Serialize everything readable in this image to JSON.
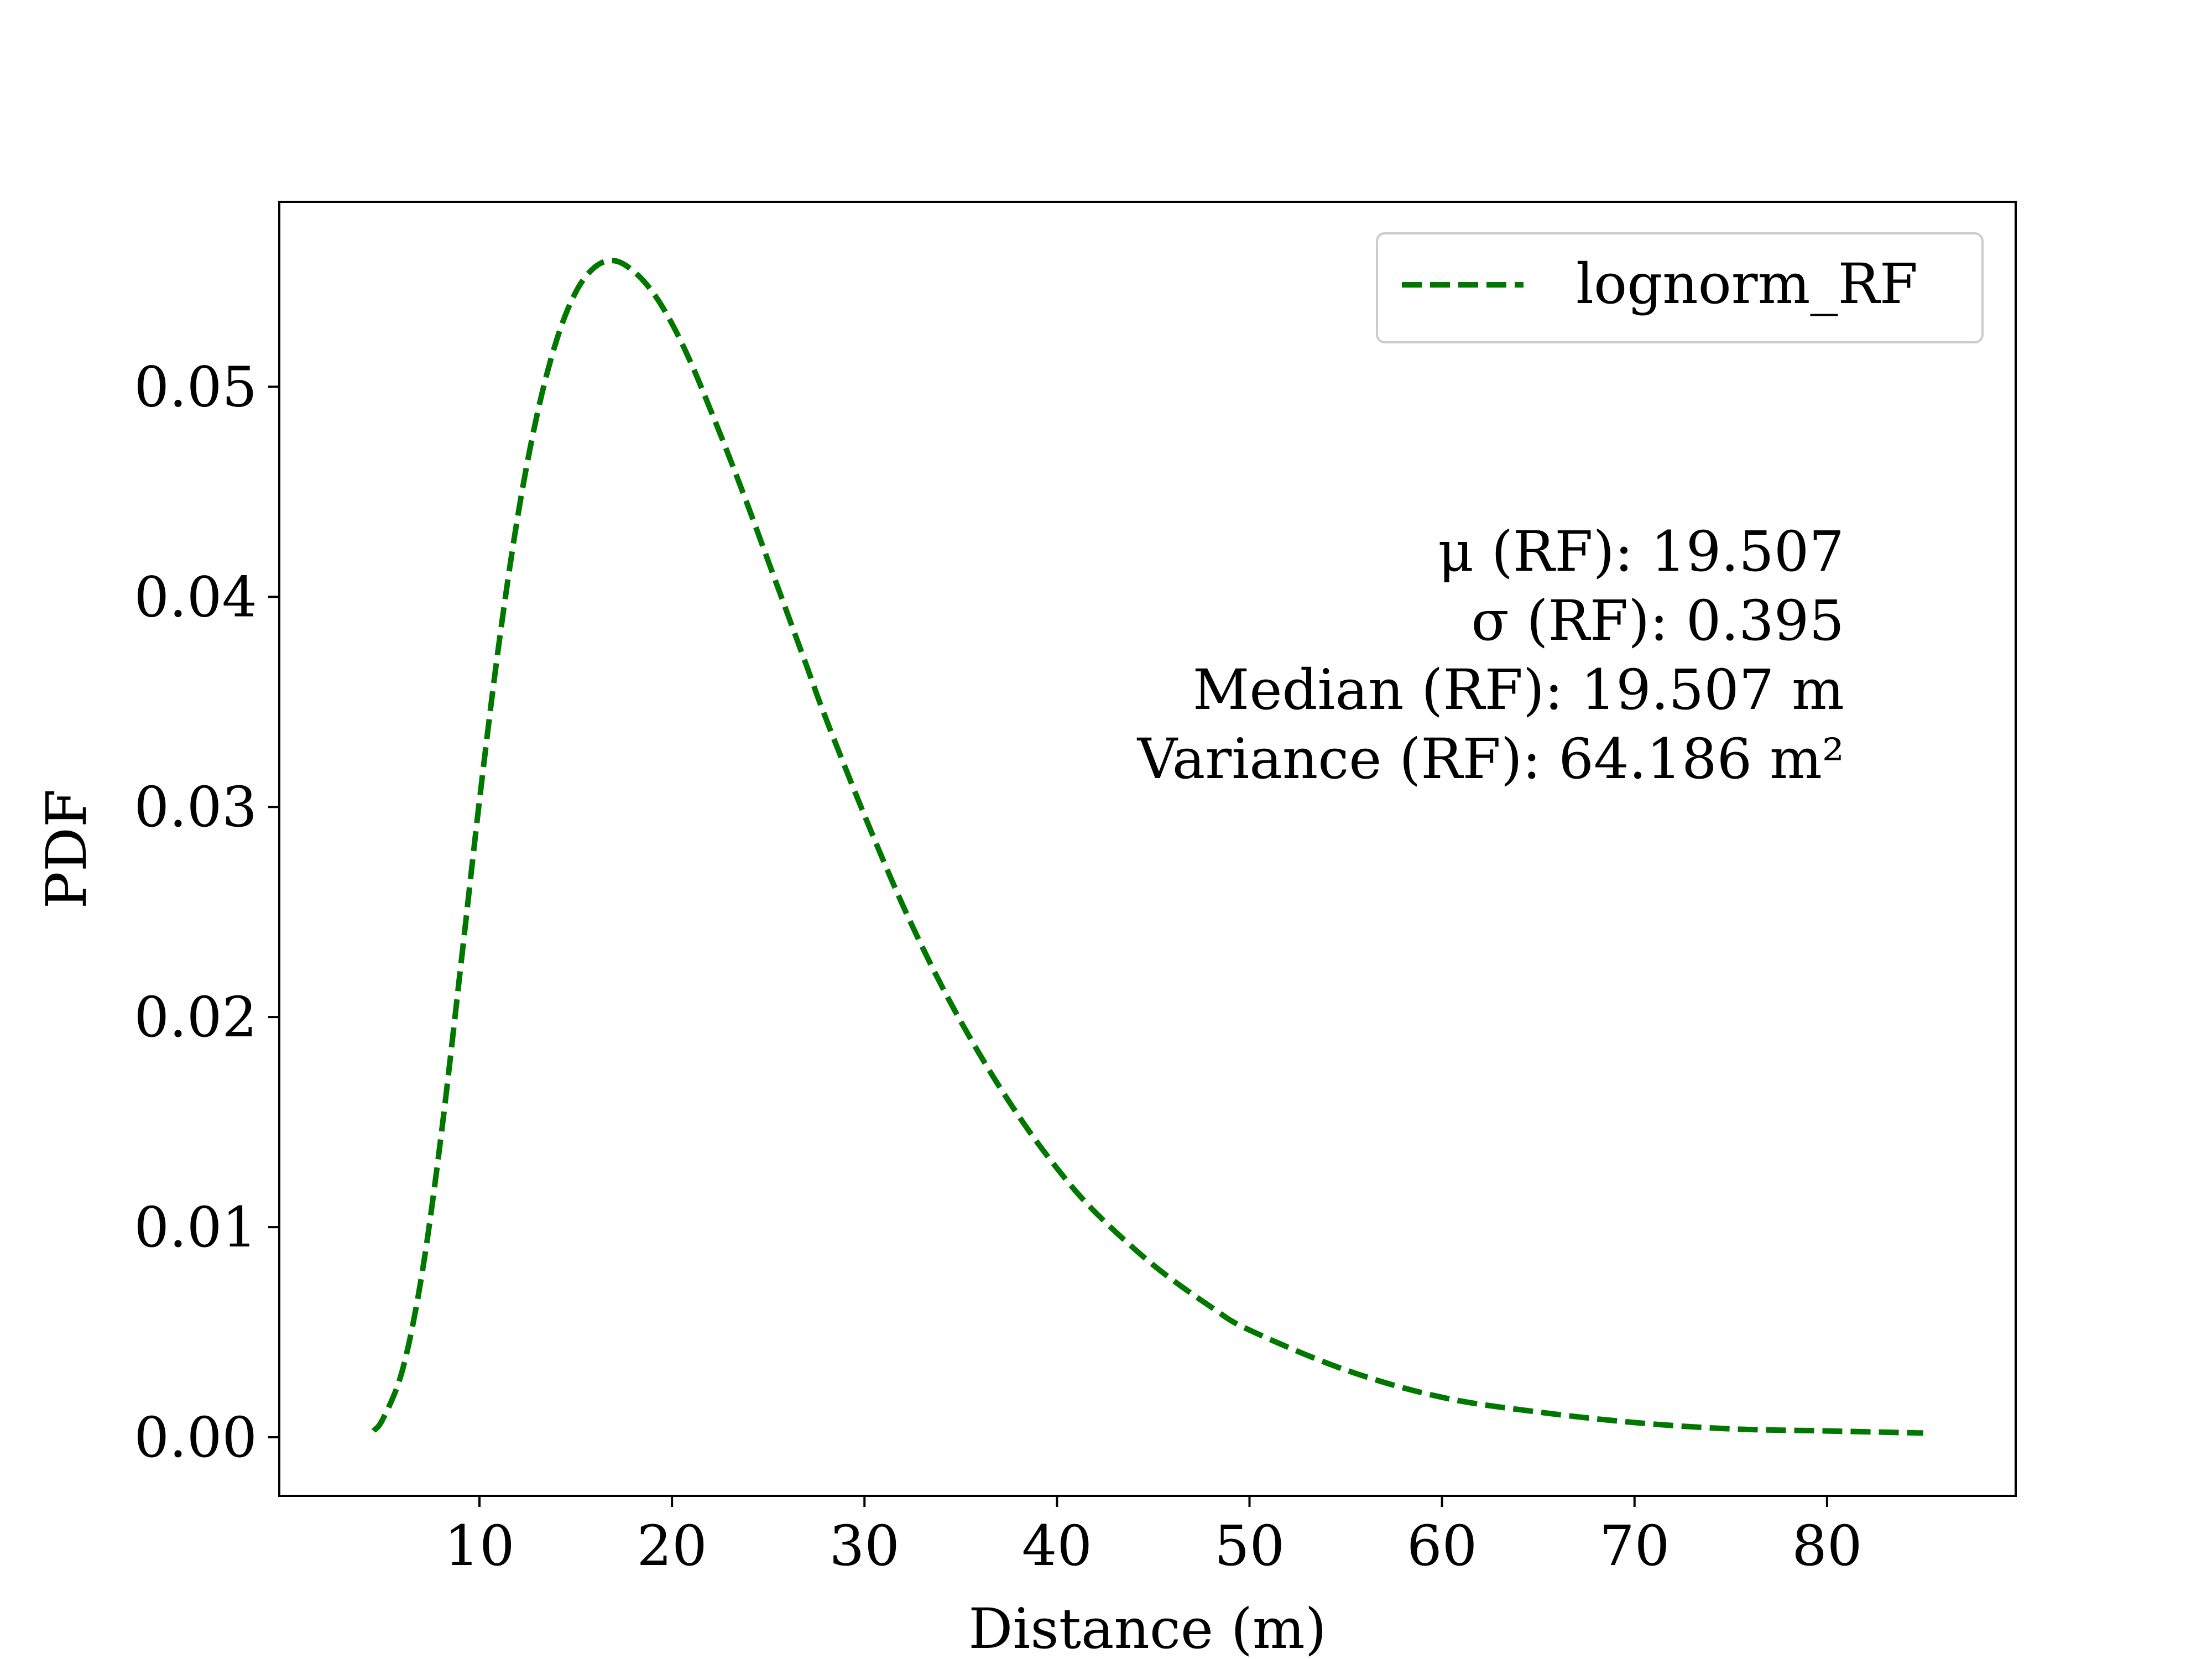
{
  "chart_data": {
    "type": "line",
    "title": "",
    "xlabel": "Distance (m)",
    "ylabel": "PDF",
    "xlim": [
      -0.4,
      89.8
    ],
    "ylim": [
      -0.00279,
      0.0588
    ],
    "xticks": [
      10,
      20,
      30,
      40,
      50,
      60,
      70,
      80
    ],
    "xtick_labels": [
      "10",
      "20",
      "30",
      "40",
      "50",
      "60",
      "70",
      "80"
    ],
    "yticks": [
      0.0,
      0.01,
      0.02,
      0.03,
      0.04,
      0.05
    ],
    "ytick_labels": [
      "0.00",
      "0.01",
      "0.02",
      "0.03",
      "0.04",
      "0.05"
    ],
    "grid": false,
    "legend": {
      "placement": "top-right",
      "entries": [
        "lognorm_RF"
      ]
    },
    "series": [
      {
        "name": "lognorm_RF",
        "color": "#007800",
        "style": "dashed",
        "distribution": "lognormal",
        "x": [
          4.5,
          5,
          6,
          7,
          8,
          9,
          10,
          11,
          12,
          13,
          14,
          15,
          16,
          17,
          18,
          19,
          20,
          21,
          22,
          23,
          24,
          25,
          26,
          27,
          28,
          30,
          32,
          34,
          36,
          38,
          40,
          42,
          45,
          48,
          50,
          55,
          60,
          65,
          70,
          75,
          80,
          85
        ],
        "y": [
          0.0003,
          0.0009,
          0.0032,
          0.0077,
          0.0143,
          0.0222,
          0.0303,
          0.0377,
          0.0439,
          0.0487,
          0.0522,
          0.0545,
          0.0557,
          0.056,
          0.0555,
          0.0545,
          0.053,
          0.0511,
          0.0489,
          0.0466,
          0.0442,
          0.0417,
          0.0392,
          0.0367,
          0.0342,
          0.0296,
          0.0253,
          0.0215,
          0.0182,
          0.0153,
          0.0128,
          0.0107,
          0.0082,
          0.0062,
          0.0051,
          0.0032,
          0.0019,
          0.0012,
          0.0007,
          0.0004,
          0.0003,
          0.0002
        ]
      }
    ],
    "annotations": [
      "μ (RF): 19.507",
      "σ (RF): 0.395",
      "Median (RF): 19.507 m",
      "Variance (RF): 64.186 m²"
    ]
  }
}
